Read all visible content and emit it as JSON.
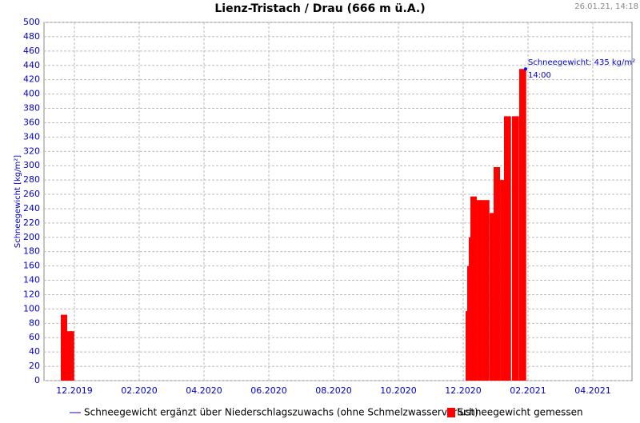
{
  "chart_data": {
    "type": "bar",
    "title": "Lienz-Tristach / Drau (666 m ü.A.)",
    "timestamp": "26.01.21, 14:18",
    "ylabel": "Schneegewicht [kg/m²]",
    "annotations": [
      "Schneegewicht: 435 kg/m²",
      "14:00"
    ],
    "xlim": [
      2019.8385,
      2021.3508
    ],
    "xticks": [
      {
        "value": 2019.9167,
        "label": "12.2019"
      },
      {
        "value": 2020.0833,
        "label": "02.2020"
      },
      {
        "value": 2020.25,
        "label": "04.2020"
      },
      {
        "value": 2020.4167,
        "label": "06.2020"
      },
      {
        "value": 2020.5833,
        "label": "08.2020"
      },
      {
        "value": 2020.75,
        "label": "10.2020"
      },
      {
        "value": 2020.9167,
        "label": "12.2020"
      },
      {
        "value": 2021.0833,
        "label": "02.2021"
      },
      {
        "value": 2021.25,
        "label": "04.2021"
      }
    ],
    "ylim": [
      0,
      500
    ],
    "yticks": [
      0,
      20,
      40,
      60,
      80,
      100,
      120,
      140,
      160,
      180,
      200,
      220,
      240,
      260,
      280,
      300,
      320,
      340,
      360,
      380,
      400,
      420,
      440,
      460,
      480,
      500
    ],
    "grid": true,
    "series": [
      {
        "name": "Schneegewicht ergänzt über Niederschlagszuwachs (ohne Schmelzwasserverlust)",
        "color": "#0000ff",
        "type": "line",
        "x": [
          2021.0771
        ],
        "values": [
          435
        ]
      },
      {
        "name": "Schneegewicht gemessen",
        "color": "#ff0000",
        "type": "bar",
        "x": [
          2019.8817,
          2019.8982,
          2020.9229,
          2020.927,
          2020.9311,
          2020.9352,
          2020.9517,
          2020.9661,
          2020.9846,
          2020.9949,
          2021.0114,
          2021.0216,
          2021.0422,
          2021.0607
        ],
        "values": [
          92,
          69,
          97,
          160,
          200,
          257,
          252,
          252,
          234,
          298,
          280,
          369,
          369,
          435
        ]
      }
    ]
  }
}
